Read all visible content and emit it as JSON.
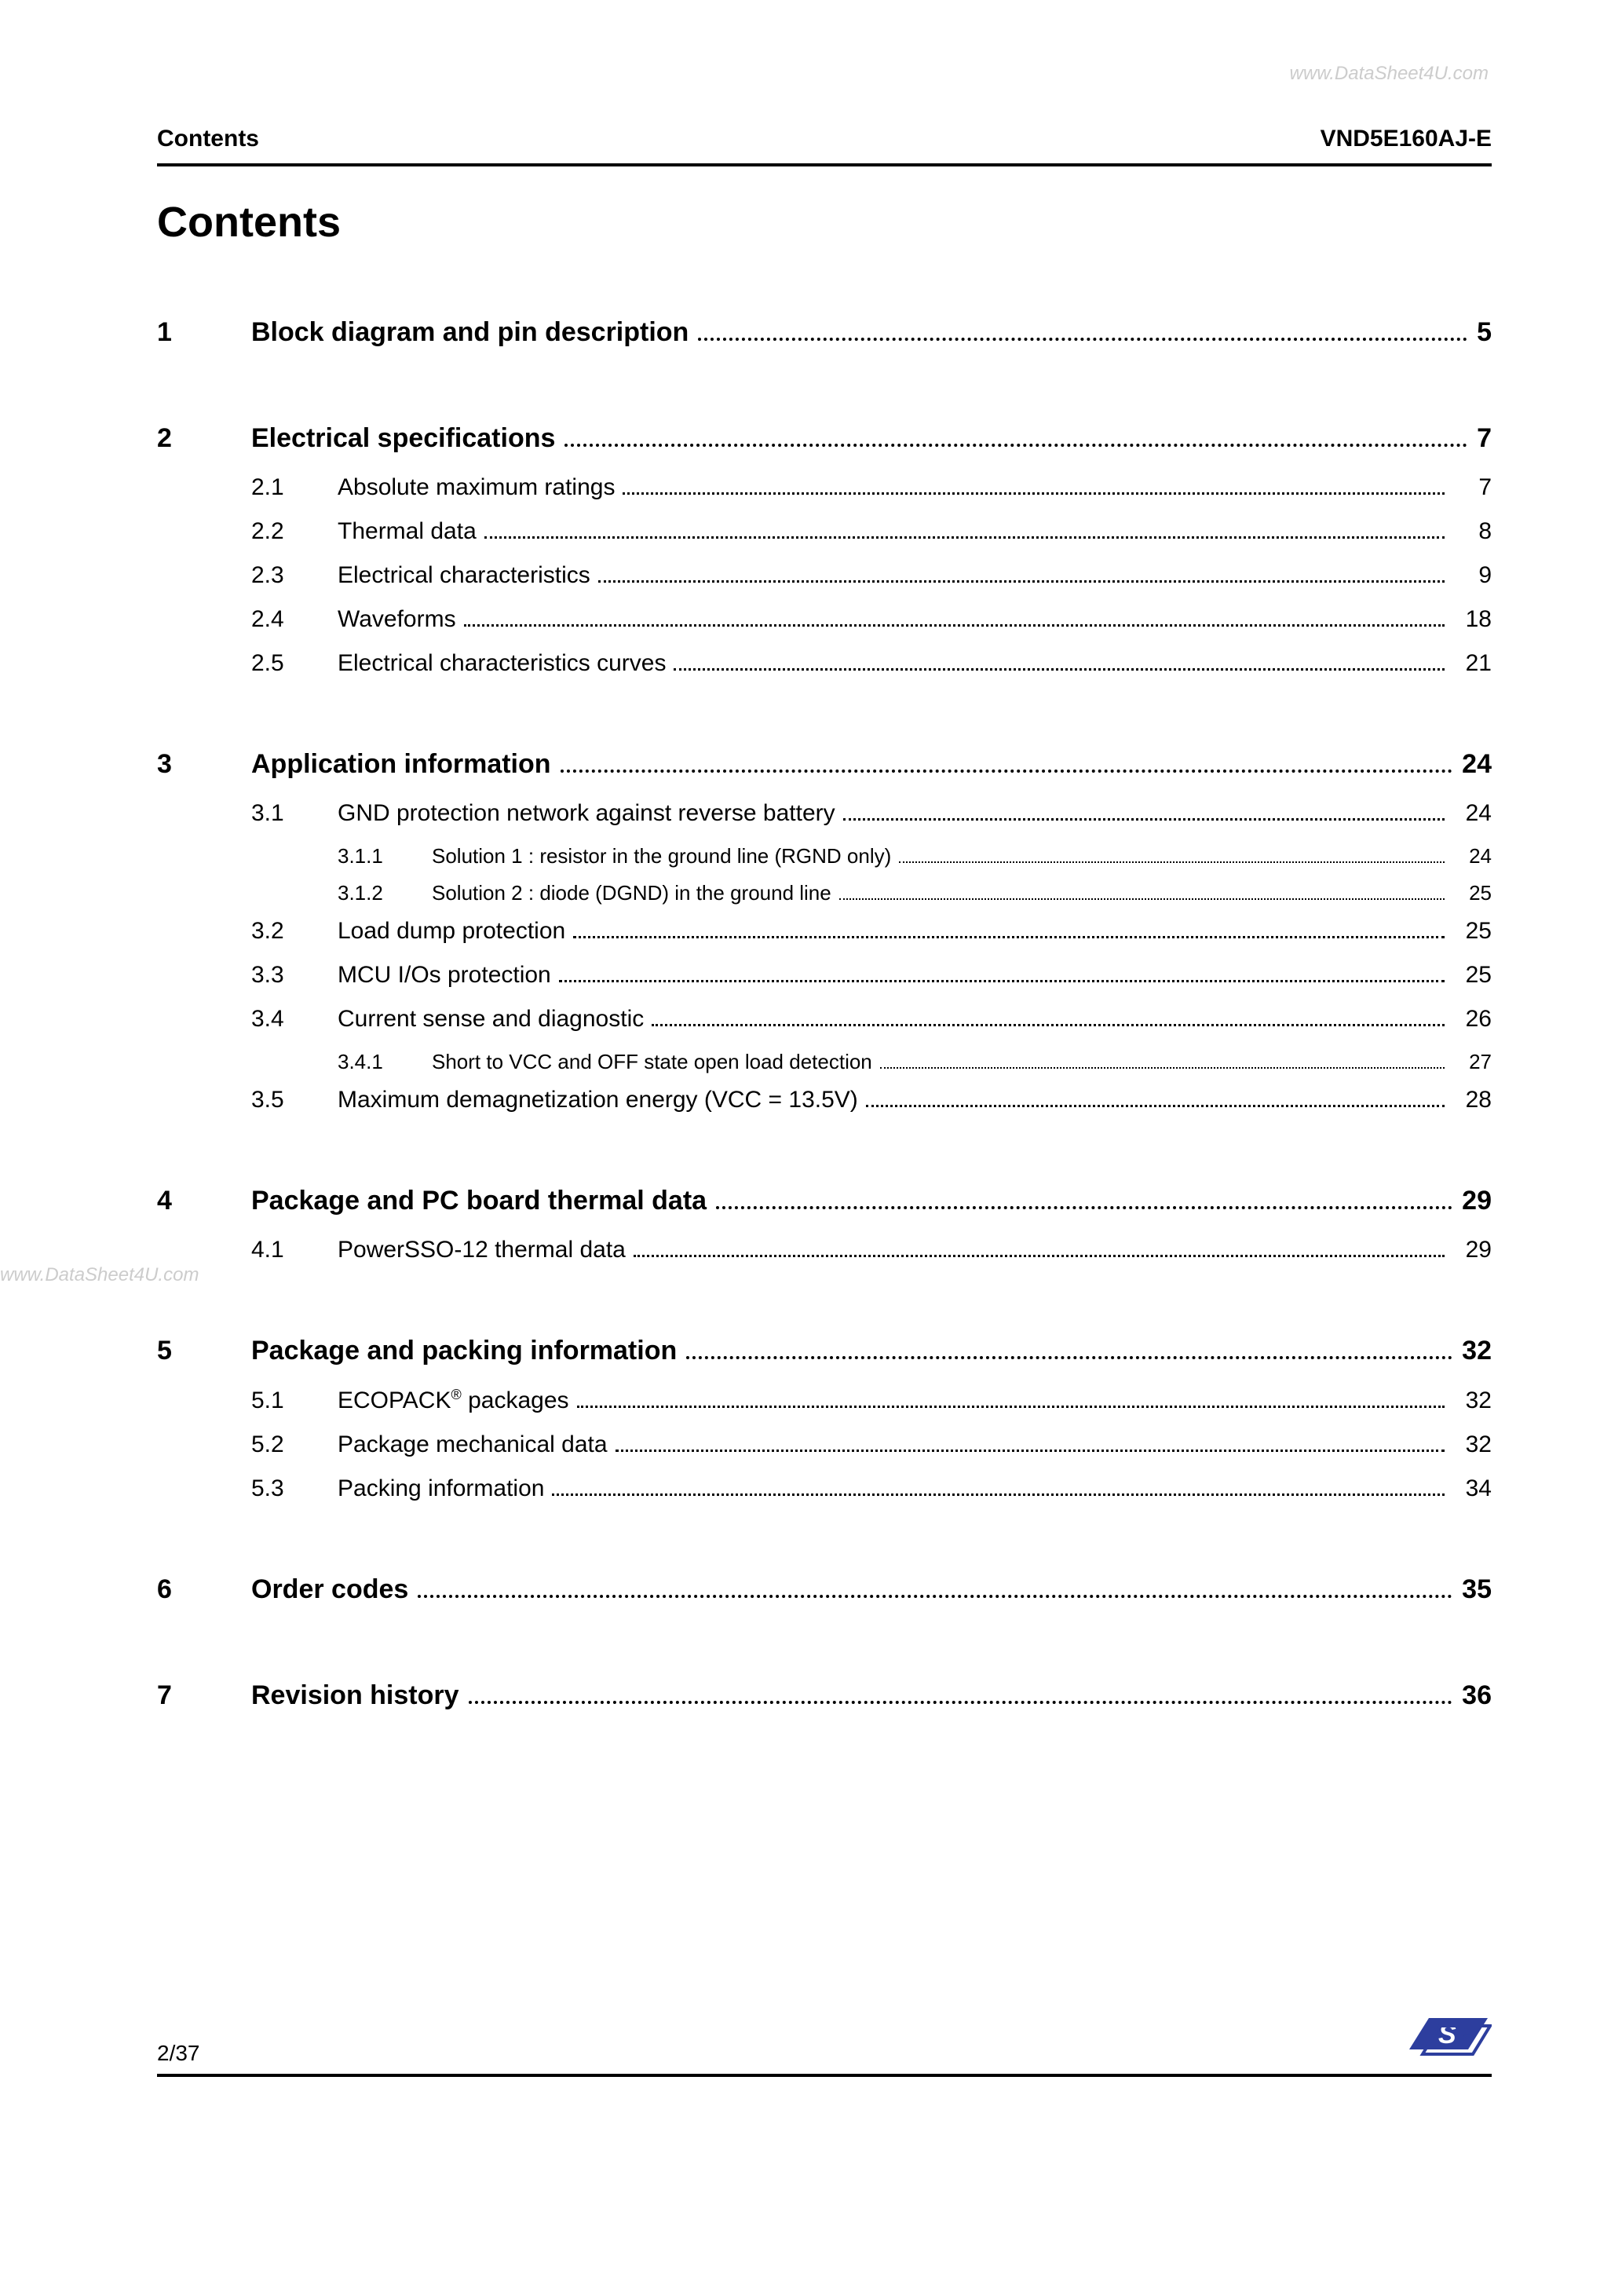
{
  "watermarks": {
    "top": "www.DataSheet4U.com",
    "mid": "www.DataSheet4U.com"
  },
  "header": {
    "left": "Contents",
    "right": "VND5E160AJ-E"
  },
  "title": "Contents",
  "toc": [
    {
      "num": "1",
      "title": "Block diagram and pin description",
      "page": "5",
      "subs": []
    },
    {
      "num": "2",
      "title": "Electrical specifications",
      "page": "7",
      "subs": [
        {
          "num": "2.1",
          "title": "Absolute maximum ratings",
          "page": "7",
          "subs": []
        },
        {
          "num": "2.2",
          "title": "Thermal data",
          "page": "8",
          "subs": []
        },
        {
          "num": "2.3",
          "title": "Electrical characteristics",
          "page": "9",
          "subs": []
        },
        {
          "num": "2.4",
          "title": "Waveforms",
          "page": "18",
          "subs": []
        },
        {
          "num": "2.5",
          "title": "Electrical characteristics curves",
          "page": "21",
          "subs": []
        }
      ]
    },
    {
      "num": "3",
      "title": "Application information",
      "page": "24",
      "subs": [
        {
          "num": "3.1",
          "title": "GND protection network against reverse battery",
          "page": "24",
          "subs": [
            {
              "num": "3.1.1",
              "title": "Solution 1 : resistor in the ground line (RGND only)",
              "page": "24"
            },
            {
              "num": "3.1.2",
              "title": "Solution 2 : diode (DGND) in the ground line",
              "page": "25"
            }
          ]
        },
        {
          "num": "3.2",
          "title": "Load dump protection",
          "page": "25",
          "subs": []
        },
        {
          "num": "3.3",
          "title": "MCU I/Os protection",
          "page": "25",
          "subs": []
        },
        {
          "num": "3.4",
          "title": "Current sense and diagnostic",
          "page": "26",
          "subs": [
            {
              "num": "3.4.1",
              "title": "Short to VCC and OFF state open load detection",
              "page": "27"
            }
          ]
        },
        {
          "num": "3.5",
          "title": "Maximum demagnetization energy (VCC = 13.5V)",
          "page": "28",
          "subs": []
        }
      ]
    },
    {
      "num": "4",
      "title": "Package and PC board thermal data",
      "page": "29",
      "subs": [
        {
          "num": "4.1",
          "title": "PowerSSO-12 thermal data",
          "page": "29",
          "subs": []
        }
      ]
    },
    {
      "num": "5",
      "title": "Package and packing information",
      "page": "32",
      "subs": [
        {
          "num": "5.1",
          "title": "ECOPACK",
          "title_sup": "®",
          "title_after": " packages",
          "page": "32",
          "subs": []
        },
        {
          "num": "5.2",
          "title": "Package mechanical data",
          "page": "32",
          "subs": []
        },
        {
          "num": "5.3",
          "title": "Packing information",
          "page": "34",
          "subs": []
        }
      ]
    },
    {
      "num": "6",
      "title": "Order codes",
      "page": "35",
      "subs": []
    },
    {
      "num": "7",
      "title": "Revision history",
      "page": "36",
      "subs": []
    }
  ],
  "footer": {
    "page": "2/37"
  },
  "colors": {
    "text": "#000000",
    "watermark": "#cccccc",
    "rule": "#000000",
    "st_blue": "#2d3e9e",
    "st_white": "#ffffff"
  }
}
